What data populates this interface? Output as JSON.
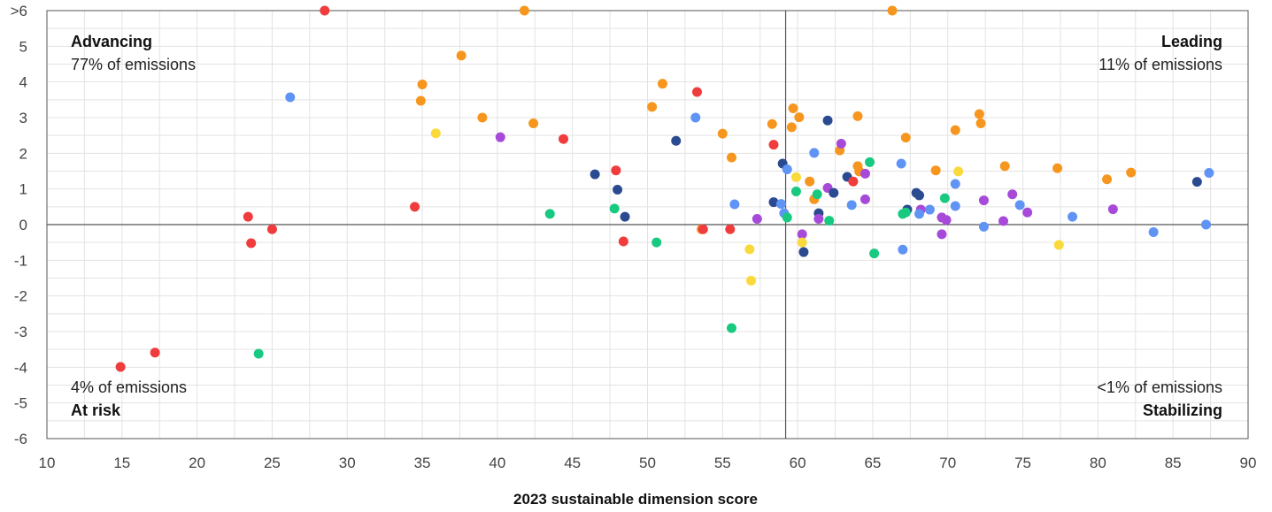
{
  "chart_data": {
    "type": "scatter",
    "xlabel": "2023 sustainable dimension score",
    "ylabel": "",
    "xlim": [
      10,
      90
    ],
    "ylim": [
      -6,
      6
    ],
    "x_ticks": [
      "10",
      "15",
      "20",
      "25",
      "30",
      "35",
      "40",
      "45",
      "50",
      "55",
      "60",
      "65",
      "70",
      "75",
      "80",
      "85",
      "90"
    ],
    "y_ticks": [
      ">6",
      "5",
      "4",
      "3",
      "2",
      "1",
      "0",
      "-1",
      "-2",
      "-3",
      "-4",
      "-5",
      "-6"
    ],
    "grid": true,
    "divider_x": 59.2,
    "divider_y": 0,
    "quadrants": {
      "top_left": {
        "name": "Advancing",
        "share": "77% of emissions"
      },
      "top_right": {
        "name": "Leading",
        "share": "11% of emissions"
      },
      "bottom_left": {
        "name": "At risk",
        "share": "4% of emissions"
      },
      "bottom_right": {
        "name": "Stabilizing",
        "share": "<1% of emissions"
      }
    },
    "colors": {
      "red": "#f03c3c",
      "orange": "#f7961e",
      "lightblue": "#5f94f5",
      "navy": "#2b4b91",
      "green": "#18c980",
      "purple": "#a74ad9",
      "yellow": "#fad93a"
    },
    "points": [
      {
        "x": 28.5,
        "y": 6,
        "c": "red"
      },
      {
        "x": 41.8,
        "y": 6,
        "c": "orange"
      },
      {
        "x": 66.3,
        "y": 6,
        "c": "orange"
      },
      {
        "x": 26.2,
        "y": 3.57,
        "c": "lightblue"
      },
      {
        "x": 37.6,
        "y": 4.74,
        "c": "orange"
      },
      {
        "x": 35.0,
        "y": 3.93,
        "c": "orange"
      },
      {
        "x": 34.9,
        "y": 3.47,
        "c": "orange"
      },
      {
        "x": 35.9,
        "y": 2.56,
        "c": "yellow"
      },
      {
        "x": 39.0,
        "y": 3.0,
        "c": "orange"
      },
      {
        "x": 40.2,
        "y": 2.45,
        "c": "purple"
      },
      {
        "x": 42.4,
        "y": 2.84,
        "c": "orange"
      },
      {
        "x": 44.4,
        "y": 2.4,
        "c": "red"
      },
      {
        "x": 46.5,
        "y": 1.41,
        "c": "navy"
      },
      {
        "x": 47.9,
        "y": 1.52,
        "c": "red"
      },
      {
        "x": 48.0,
        "y": 0.98,
        "c": "navy"
      },
      {
        "x": 48.5,
        "y": 0.22,
        "c": "navy"
      },
      {
        "x": 47.8,
        "y": 0.45,
        "c": "green"
      },
      {
        "x": 43.5,
        "y": 0.3,
        "c": "green"
      },
      {
        "x": 34.5,
        "y": 0.5,
        "c": "red"
      },
      {
        "x": 23.4,
        "y": 0.22,
        "c": "red"
      },
      {
        "x": 23.6,
        "y": -0.52,
        "c": "red"
      },
      {
        "x": 25.0,
        "y": -0.13,
        "c": "red"
      },
      {
        "x": 14.9,
        "y": -3.99,
        "c": "red"
      },
      {
        "x": 17.2,
        "y": -3.59,
        "c": "red"
      },
      {
        "x": 24.1,
        "y": -3.62,
        "c": "green"
      },
      {
        "x": 48.4,
        "y": -0.47,
        "c": "red"
      },
      {
        "x": 50.6,
        "y": -0.5,
        "c": "green"
      },
      {
        "x": 51.0,
        "y": 3.95,
        "c": "orange"
      },
      {
        "x": 50.3,
        "y": 3.3,
        "c": "orange"
      },
      {
        "x": 53.3,
        "y": 3.72,
        "c": "red"
      },
      {
        "x": 53.2,
        "y": 3.0,
        "c": "lightblue"
      },
      {
        "x": 51.9,
        "y": 2.35,
        "c": "navy"
      },
      {
        "x": 55.0,
        "y": 2.55,
        "c": "orange"
      },
      {
        "x": 55.6,
        "y": 1.88,
        "c": "orange"
      },
      {
        "x": 55.8,
        "y": 0.57,
        "c": "lightblue"
      },
      {
        "x": 53.6,
        "y": -0.13,
        "c": "orange"
      },
      {
        "x": 53.7,
        "y": -0.13,
        "c": "red"
      },
      {
        "x": 55.5,
        "y": -0.13,
        "c": "red"
      },
      {
        "x": 56.8,
        "y": -0.69,
        "c": "yellow"
      },
      {
        "x": 56.9,
        "y": -1.57,
        "c": "yellow"
      },
      {
        "x": 55.6,
        "y": -2.9,
        "c": "green"
      },
      {
        "x": 57.3,
        "y": 0.16,
        "c": "purple"
      },
      {
        "x": 58.3,
        "y": 2.82,
        "c": "orange"
      },
      {
        "x": 58.4,
        "y": 2.24,
        "c": "red"
      },
      {
        "x": 58.4,
        "y": 0.63,
        "c": "navy"
      },
      {
        "x": 58.9,
        "y": 0.58,
        "c": "lightblue"
      },
      {
        "x": 59.0,
        "y": 1.71,
        "c": "navy"
      },
      {
        "x": 59.3,
        "y": 1.55,
        "c": "lightblue"
      },
      {
        "x": 59.1,
        "y": 0.32,
        "c": "lightblue"
      },
      {
        "x": 59.3,
        "y": 0.2,
        "c": "green"
      },
      {
        "x": 59.7,
        "y": 3.26,
        "c": "orange"
      },
      {
        "x": 60.1,
        "y": 3.01,
        "c": "orange"
      },
      {
        "x": 59.6,
        "y": 2.73,
        "c": "orange"
      },
      {
        "x": 59.9,
        "y": 1.33,
        "c": "yellow"
      },
      {
        "x": 59.9,
        "y": 0.93,
        "c": "green"
      },
      {
        "x": 60.3,
        "y": -0.27,
        "c": "purple"
      },
      {
        "x": 60.3,
        "y": -0.5,
        "c": "yellow"
      },
      {
        "x": 60.4,
        "y": -0.77,
        "c": "navy"
      },
      {
        "x": 60.8,
        "y": 1.21,
        "c": "orange"
      },
      {
        "x": 61.1,
        "y": 2.01,
        "c": "lightblue"
      },
      {
        "x": 61.1,
        "y": 0.71,
        "c": "orange"
      },
      {
        "x": 61.3,
        "y": 0.85,
        "c": "green"
      },
      {
        "x": 61.4,
        "y": 0.32,
        "c": "navy"
      },
      {
        "x": 61.4,
        "y": 0.16,
        "c": "purple"
      },
      {
        "x": 62.0,
        "y": 2.92,
        "c": "navy"
      },
      {
        "x": 62.0,
        "y": 1.03,
        "c": "purple"
      },
      {
        "x": 62.4,
        "y": 0.89,
        "c": "navy"
      },
      {
        "x": 62.1,
        "y": 0.11,
        "c": "green"
      },
      {
        "x": 62.8,
        "y": 2.08,
        "c": "orange"
      },
      {
        "x": 62.9,
        "y": 2.27,
        "c": "purple"
      },
      {
        "x": 63.3,
        "y": 1.34,
        "c": "navy"
      },
      {
        "x": 63.7,
        "y": 1.21,
        "c": "red"
      },
      {
        "x": 63.6,
        "y": 0.55,
        "c": "lightblue"
      },
      {
        "x": 64.0,
        "y": 3.04,
        "c": "orange"
      },
      {
        "x": 64.0,
        "y": 1.64,
        "c": "orange"
      },
      {
        "x": 64.1,
        "y": 1.49,
        "c": "orange"
      },
      {
        "x": 64.5,
        "y": 1.43,
        "c": "purple"
      },
      {
        "x": 64.5,
        "y": 0.71,
        "c": "purple"
      },
      {
        "x": 64.8,
        "y": 1.75,
        "c": "green"
      },
      {
        "x": 65.1,
        "y": -0.81,
        "c": "green"
      },
      {
        "x": 66.9,
        "y": 1.71,
        "c": "lightblue"
      },
      {
        "x": 67.2,
        "y": 2.44,
        "c": "orange"
      },
      {
        "x": 67.3,
        "y": 0.42,
        "c": "navy"
      },
      {
        "x": 67.2,
        "y": 0.34,
        "c": "green"
      },
      {
        "x": 67.0,
        "y": 0.3,
        "c": "green"
      },
      {
        "x": 67.0,
        "y": -0.7,
        "c": "lightblue"
      },
      {
        "x": 67.9,
        "y": 0.89,
        "c": "navy"
      },
      {
        "x": 68.1,
        "y": 0.82,
        "c": "navy"
      },
      {
        "x": 68.2,
        "y": 0.42,
        "c": "purple"
      },
      {
        "x": 68.1,
        "y": 0.3,
        "c": "lightblue"
      },
      {
        "x": 68.8,
        "y": 0.42,
        "c": "lightblue"
      },
      {
        "x": 69.2,
        "y": 1.52,
        "c": "orange"
      },
      {
        "x": 69.6,
        "y": 0.2,
        "c": "purple"
      },
      {
        "x": 69.9,
        "y": 0.13,
        "c": "purple"
      },
      {
        "x": 69.6,
        "y": -0.27,
        "c": "purple"
      },
      {
        "x": 69.8,
        "y": 0.74,
        "c": "green"
      },
      {
        "x": 70.5,
        "y": 2.65,
        "c": "orange"
      },
      {
        "x": 70.5,
        "y": 1.14,
        "c": "lightblue"
      },
      {
        "x": 70.5,
        "y": 0.52,
        "c": "lightblue"
      },
      {
        "x": 70.7,
        "y": 1.49,
        "c": "yellow"
      },
      {
        "x": 72.1,
        "y": 3.1,
        "c": "orange"
      },
      {
        "x": 72.2,
        "y": 2.84,
        "c": "orange"
      },
      {
        "x": 72.4,
        "y": 0.68,
        "c": "purple"
      },
      {
        "x": 72.4,
        "y": -0.06,
        "c": "lightblue"
      },
      {
        "x": 73.8,
        "y": 1.64,
        "c": "orange"
      },
      {
        "x": 73.7,
        "y": 0.1,
        "c": "purple"
      },
      {
        "x": 74.3,
        "y": 0.85,
        "c": "purple"
      },
      {
        "x": 74.8,
        "y": 0.55,
        "c": "lightblue"
      },
      {
        "x": 75.3,
        "y": 0.34,
        "c": "purple"
      },
      {
        "x": 77.3,
        "y": 1.58,
        "c": "orange"
      },
      {
        "x": 77.4,
        "y": -0.57,
        "c": "yellow"
      },
      {
        "x": 78.3,
        "y": 0.22,
        "c": "lightblue"
      },
      {
        "x": 80.6,
        "y": 1.27,
        "c": "orange"
      },
      {
        "x": 81.0,
        "y": 0.43,
        "c": "purple"
      },
      {
        "x": 82.2,
        "y": 1.46,
        "c": "orange"
      },
      {
        "x": 83.7,
        "y": -0.21,
        "c": "lightblue"
      },
      {
        "x": 86.6,
        "y": 1.2,
        "c": "navy"
      },
      {
        "x": 87.4,
        "y": 1.45,
        "c": "lightblue"
      },
      {
        "x": 87.2,
        "y": 0.0,
        "c": "lightblue"
      }
    ]
  }
}
